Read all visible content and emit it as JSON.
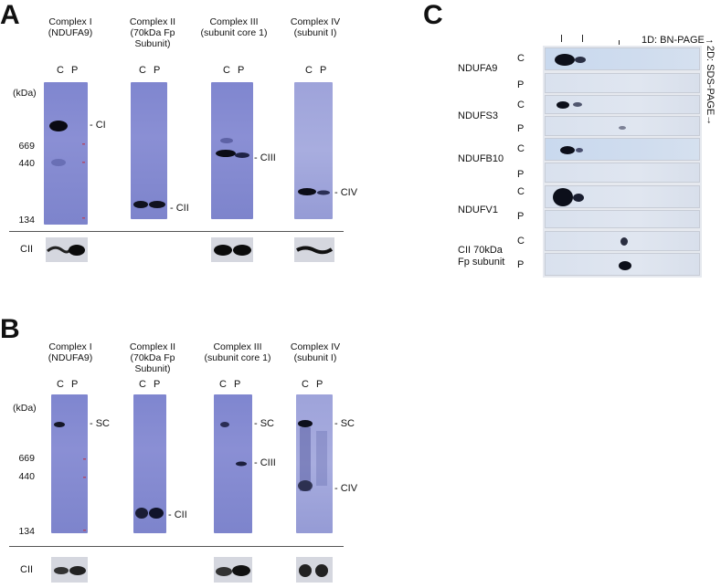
{
  "panel_a": {
    "letter": "A",
    "headers": [
      {
        "line1": "Complex I",
        "line2": "(NDUFA9)",
        "line3": ""
      },
      {
        "line1": "Complex II",
        "line2": "(70kDa Fp",
        "line3": "Subunit)"
      },
      {
        "line1": "Complex III",
        "line2": "(subunit core 1)",
        "line3": ""
      },
      {
        "line1": "Complex IV",
        "line2": "(subunit I)",
        "line3": ""
      }
    ],
    "lane_c": "C",
    "lane_p": "P",
    "unit": "(kDa)",
    "markers": [
      "669",
      "440",
      "134"
    ],
    "band_labels": [
      "- CI",
      "- CII",
      "- CIII",
      "- CIV"
    ],
    "loading_label": "CII"
  },
  "panel_b": {
    "letter": "B",
    "headers": [
      {
        "line1": "Complex I",
        "line2": "(NDUFA9)",
        "line3": ""
      },
      {
        "line1": "Complex II",
        "line2": "(70kDa Fp",
        "line3": "Subunit)"
      },
      {
        "line1": "Complex III",
        "line2": "(subunit core 1)",
        "line3": ""
      },
      {
        "line1": "Complex IV",
        "line2": "(subunit I)",
        "line3": ""
      }
    ],
    "lane_c": "C",
    "lane_p": "P",
    "unit": "(kDa)",
    "markers": [
      "669",
      "440",
      "134"
    ],
    "band_labels": [
      "- SC",
      "- CII",
      "- SC",
      "- CIII",
      "- SC",
      "- CIV"
    ],
    "loading_label": "CII"
  },
  "panel_c": {
    "letter": "C",
    "axis_1d": "1D: BN-PAGE→",
    "axis_2d": "2D: SDS-PAGE→",
    "proteins": [
      "NDUFA9",
      "NDUFS3",
      "NDUFB10",
      "NDUFV1",
      "CII 70kDa",
      "Fp subunit"
    ],
    "lane_c": "C",
    "lane_p": "P"
  }
}
